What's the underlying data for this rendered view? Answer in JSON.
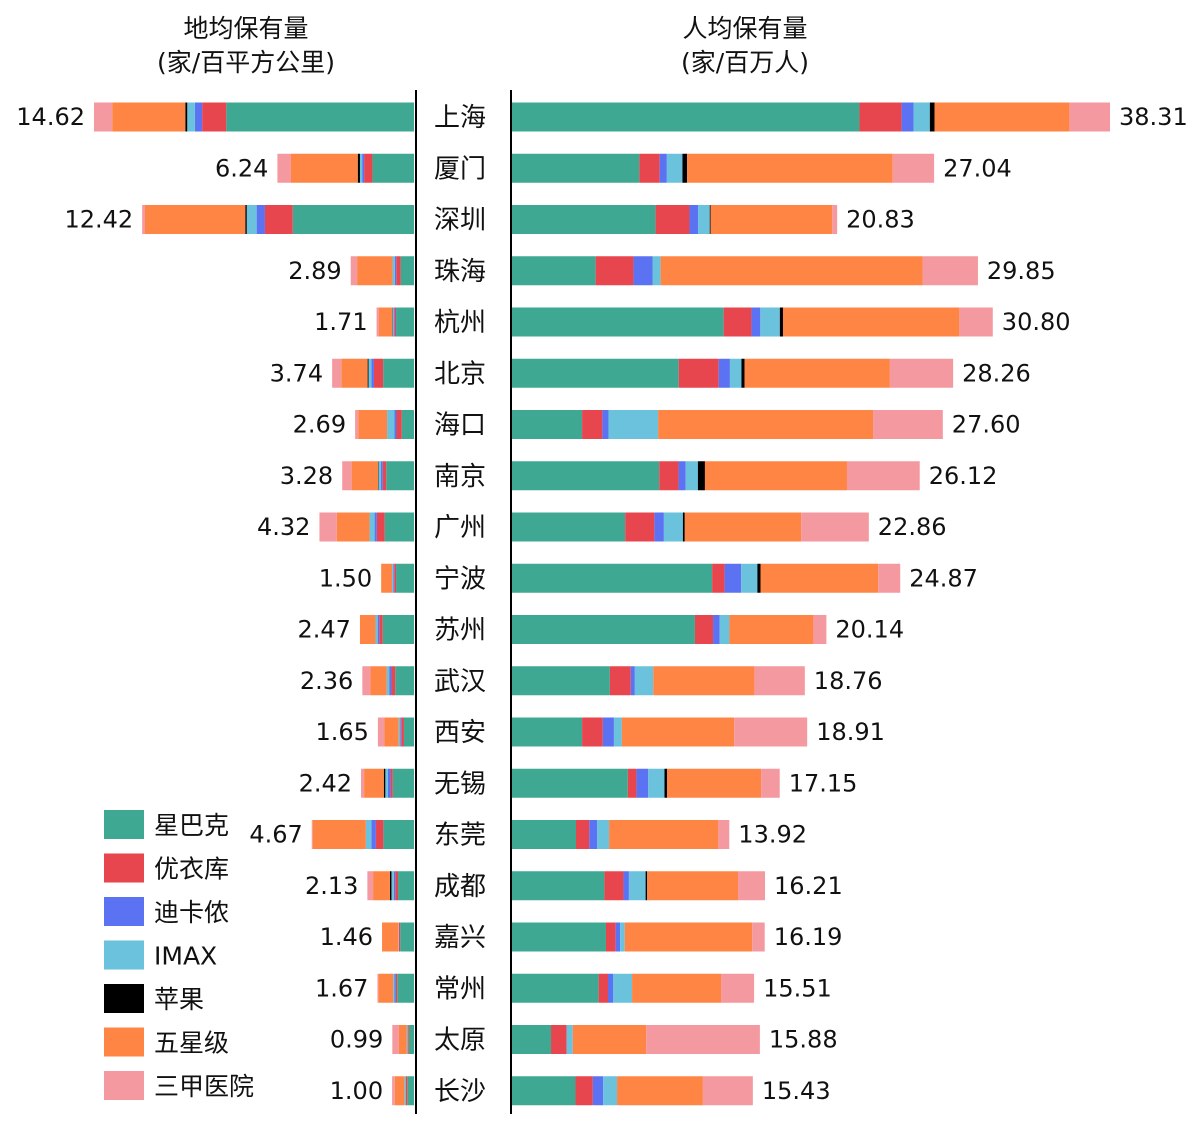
{
  "chart_data": {
    "type": "bar",
    "stacked": true,
    "orientation": "horizontal",
    "layout": "butterfly",
    "left_panel": {
      "title_line1": "地均保有量",
      "title_line2": "(家/百平方公里)",
      "xlim": [
        0,
        15.4
      ]
    },
    "right_panel": {
      "title_line1": "人均保有量",
      "title_line2": "(家/百万人)",
      "xlim": [
        0,
        40
      ]
    },
    "series": [
      {
        "name": "星巴克",
        "color": "#3fa893"
      },
      {
        "name": "优衣库",
        "color": "#e8464f"
      },
      {
        "name": "迪卡侬",
        "color": "#5b72f2"
      },
      {
        "name": "IMAX",
        "color": "#6ac2dd"
      },
      {
        "name": "苹果",
        "color": "#000000"
      },
      {
        "name": "五星级",
        "color": "#ff8545"
      },
      {
        "name": "三甲医院",
        "color": "#f4999f"
      }
    ],
    "categories": [
      {
        "city": "上海",
        "area_total": "14.62",
        "area": [
          8.58,
          1.1,
          0.33,
          0.35,
          0.09,
          3.34,
          0.83
        ],
        "pop_total": "38.31",
        "pop": [
          22.26,
          2.7,
          0.76,
          1.05,
          0.3,
          8.64,
          2.6
        ]
      },
      {
        "city": "厦门",
        "area_total": "6.24",
        "area": [
          1.9,
          0.38,
          0.09,
          0.1,
          0.1,
          3.05,
          0.62
        ],
        "pop_total": "27.04",
        "pop": [
          8.16,
          1.3,
          0.46,
          1.0,
          0.3,
          13.17,
          2.65
        ]
      },
      {
        "city": "深圳",
        "area_total": "12.42",
        "area": [
          5.54,
          1.27,
          0.38,
          0.45,
          0.07,
          4.58,
          0.13
        ],
        "pop_total": "20.83",
        "pop": [
          9.2,
          2.17,
          0.55,
          0.75,
          0.05,
          7.79,
          0.32
        ]
      },
      {
        "city": "珠海",
        "area_total": "2.89",
        "area": [
          0.61,
          0.2,
          0.07,
          0.1,
          0.0,
          1.62,
          0.29
        ],
        "pop_total": "29.85",
        "pop": [
          5.36,
          2.42,
          1.22,
          0.52,
          0.0,
          16.78,
          3.55
        ]
      },
      {
        "city": "杭州",
        "area_total": "1.71",
        "area": [
          0.82,
          0.06,
          0.05,
          0.04,
          0.02,
          0.61,
          0.11
        ],
        "pop_total": "30.80",
        "pop": [
          13.56,
          1.78,
          0.57,
          1.25,
          0.2,
          11.3,
          2.14
        ]
      },
      {
        "city": "北京",
        "area_total": "3.74",
        "area": [
          1.41,
          0.42,
          0.12,
          0.13,
          0.04,
          1.2,
          0.42
        ],
        "pop_total": "28.26",
        "pop": [
          10.68,
          2.56,
          0.72,
          0.74,
          0.2,
          9.31,
          4.05
        ]
      },
      {
        "city": "海口",
        "area_total": "2.69",
        "area": [
          0.56,
          0.24,
          0.09,
          0.34,
          0.0,
          1.32,
          0.14
        ],
        "pop_total": "27.60",
        "pop": [
          4.49,
          1.3,
          0.39,
          3.18,
          0.0,
          13.77,
          4.47
        ]
      },
      {
        "city": "南京",
        "area_total": "3.28",
        "area": [
          1.27,
          0.16,
          0.08,
          0.11,
          0.02,
          1.21,
          0.43
        ],
        "pop_total": "26.12",
        "pop": [
          9.43,
          1.24,
          0.46,
          0.78,
          0.45,
          9.1,
          4.66
        ]
      },
      {
        "city": "广州",
        "area_total": "4.32",
        "area": [
          1.34,
          0.36,
          0.1,
          0.23,
          0.0,
          1.5,
          0.79
        ],
        "pop_total": "22.86",
        "pop": [
          7.25,
          1.87,
          0.61,
          1.22,
          0.12,
          7.45,
          4.34
        ]
      },
      {
        "city": "宁波",
        "area_total": "1.50",
        "area": [
          0.82,
          0.08,
          0.05,
          0.05,
          0.0,
          0.5,
          0.0
        ],
        "pop_total": "24.87",
        "pop": [
          12.82,
          0.8,
          1.06,
          1.04,
          0.2,
          7.54,
          1.41
        ]
      },
      {
        "city": "苏州",
        "area_total": "2.47",
        "area": [
          1.43,
          0.16,
          0.07,
          0.1,
          0.0,
          0.71,
          0.0
        ],
        "pop_total": "20.14",
        "pop": [
          11.72,
          1.16,
          0.42,
          0.63,
          0.0,
          5.38,
          0.83
        ]
      },
      {
        "city": "武汉",
        "area_total": "2.36",
        "area": [
          0.86,
          0.17,
          0.09,
          0.13,
          0.0,
          0.74,
          0.37
        ],
        "pop_total": "18.76",
        "pop": [
          6.27,
          1.34,
          0.26,
          1.18,
          0.0,
          6.48,
          3.23
        ]
      },
      {
        "city": "西安",
        "area_total": "1.65",
        "area": [
          0.46,
          0.12,
          0.05,
          0.07,
          0.0,
          0.65,
          0.3
        ],
        "pop_total": "18.91",
        "pop": [
          4.49,
          1.33,
          0.71,
          0.51,
          0.0,
          7.19,
          4.68
        ]
      },
      {
        "city": "无锡",
        "area_total": "2.42",
        "area": [
          0.97,
          0.1,
          0.12,
          0.12,
          0.07,
          0.9,
          0.14
        ],
        "pop_total": "17.15",
        "pop": [
          7.42,
          0.55,
          0.76,
          1.04,
          0.16,
          6.03,
          1.19
        ]
      },
      {
        "city": "东莞",
        "area_total": "4.67",
        "area": [
          1.4,
          0.34,
          0.21,
          0.25,
          0.0,
          2.43,
          0.04
        ],
        "pop_total": "13.92",
        "pop": [
          4.1,
          0.85,
          0.5,
          0.77,
          0.0,
          7.0,
          0.7
        ]
      },
      {
        "city": "成都",
        "area_total": "2.13",
        "area": [
          0.73,
          0.13,
          0.06,
          0.11,
          0.07,
          0.77,
          0.26
        ],
        "pop_total": "16.21",
        "pop": [
          5.92,
          1.22,
          0.35,
          1.07,
          0.1,
          5.82,
          1.73
        ]
      },
      {
        "city": "嘉兴",
        "area_total": "1.46",
        "area": [
          0.63,
          0.06,
          0.0,
          0.03,
          0.0,
          0.74,
          0.0
        ],
        "pop_total": "16.19",
        "pop": [
          6.02,
          0.62,
          0.29,
          0.29,
          0.0,
          8.17,
          0.8
        ]
      },
      {
        "city": "常州",
        "area_total": "1.67",
        "area": [
          0.77,
          0.06,
          0.06,
          0.06,
          0.0,
          0.68,
          0.04
        ],
        "pop_total": "15.51",
        "pop": [
          5.55,
          0.6,
          0.32,
          1.22,
          0.0,
          5.7,
          2.12
        ]
      },
      {
        "city": "太原",
        "area_total": "0.99",
        "area": [
          0.24,
          0.05,
          0.0,
          0.04,
          0.0,
          0.36,
          0.3
        ],
        "pop_total": "15.88",
        "pop": [
          2.5,
          1.0,
          0.0,
          0.39,
          0.0,
          4.7,
          7.29
        ]
      },
      {
        "city": "长沙",
        "area_total": "1.00",
        "area": [
          0.31,
          0.07,
          0.0,
          0.06,
          0.0,
          0.44,
          0.12
        ],
        "pop_total": "15.43",
        "pop": [
          4.07,
          1.11,
          0.66,
          0.89,
          0.0,
          5.5,
          3.2
        ]
      }
    ],
    "legend_position": "bottom-left",
    "grid": false
  }
}
